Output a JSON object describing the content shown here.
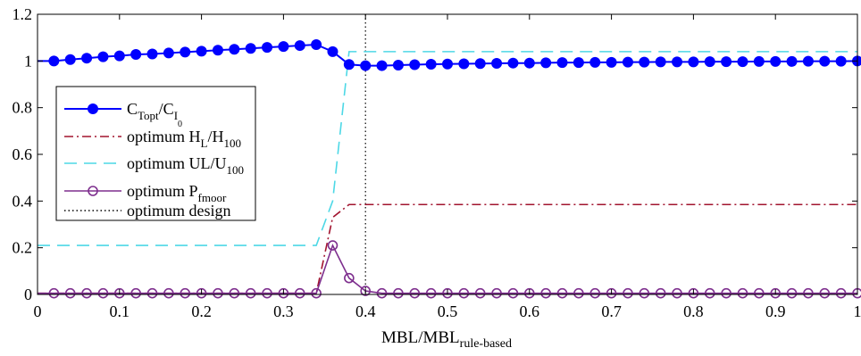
{
  "chart_data": {
    "type": "line",
    "title": "",
    "xlabel": "MBL/MBL",
    "xlabel_sub": "rule-based",
    "ylabel": "",
    "xlim": [
      0,
      1
    ],
    "ylim": [
      0,
      1.2
    ],
    "x_ticks": [
      "0",
      "0.1",
      "0.2",
      "0.3",
      "0.4",
      "0.5",
      "0.6",
      "0.7",
      "0.8",
      "0.9",
      "1"
    ],
    "y_ticks": [
      "0",
      "0.2",
      "0.4",
      "0.6",
      "0.8",
      "1",
      "1.2"
    ],
    "grid": false,
    "legend_position": "left, center",
    "legend": [
      {
        "base": "C",
        "sub": "Topt",
        "mid": "/C",
        "sub2": "I",
        "subsub": "0"
      },
      {
        "base": "optimum H",
        "sub": "L",
        "mid": "/H",
        "sub2": "100"
      },
      {
        "base": "optimum UL/U",
        "sub": "100"
      },
      {
        "base": "optimum P",
        "sub": "fmoor"
      },
      {
        "base": "optimum design"
      }
    ],
    "colors": {
      "ctopt": "#0000ff",
      "hl": "#a2142f",
      "ul": "#4dd8e6",
      "pfmoor": "#7e2f8e",
      "design": "#000000"
    },
    "x": [
      0.02,
      0.04,
      0.06,
      0.08,
      0.1,
      0.12,
      0.14,
      0.16,
      0.18,
      0.2,
      0.22,
      0.24,
      0.26,
      0.28,
      0.3,
      0.32,
      0.34,
      0.36,
      0.38,
      0.4,
      0.42,
      0.44,
      0.46,
      0.48,
      0.5,
      0.52,
      0.54,
      0.56,
      0.58,
      0.6,
      0.62,
      0.64,
      0.66,
      0.68,
      0.7,
      0.72,
      0.74,
      0.76,
      0.78,
      0.8,
      0.82,
      0.84,
      0.86,
      0.88,
      0.9,
      0.92,
      0.94,
      0.96,
      0.98,
      1.0
    ],
    "series": [
      {
        "name": "C_Topt/C_I0",
        "values": [
          1.0,
          1.006,
          1.012,
          1.018,
          1.022,
          1.028,
          1.03,
          1.034,
          1.038,
          1.042,
          1.046,
          1.05,
          1.054,
          1.058,
          1.062,
          1.066,
          1.07,
          1.04,
          0.985,
          0.98,
          0.98,
          0.982,
          0.984,
          0.986,
          0.987,
          0.988,
          0.989,
          0.99,
          0.991,
          0.991,
          0.992,
          0.993,
          0.993,
          0.994,
          0.994,
          0.995,
          0.995,
          0.996,
          0.996,
          0.996,
          0.997,
          0.997,
          0.997,
          0.998,
          0.998,
          0.998,
          0.999,
          0.999,
          0.999,
          1.0
        ]
      },
      {
        "name": "optimum H_L/H_100",
        "values": [
          0.005,
          0.005,
          0.005,
          0.005,
          0.005,
          0.005,
          0.005,
          0.005,
          0.005,
          0.005,
          0.005,
          0.005,
          0.005,
          0.005,
          0.005,
          0.005,
          0.005,
          0.33,
          0.385,
          0.385,
          0.385,
          0.385,
          0.385,
          0.385,
          0.385,
          0.385,
          0.385,
          0.385,
          0.385,
          0.385,
          0.385,
          0.385,
          0.385,
          0.385,
          0.385,
          0.385,
          0.385,
          0.385,
          0.385,
          0.385,
          0.385,
          0.385,
          0.385,
          0.385,
          0.385,
          0.385,
          0.385,
          0.385,
          0.385,
          0.385
        ]
      },
      {
        "name": "optimum UL/U_100",
        "values": [
          0.21,
          0.21,
          0.21,
          0.21,
          0.21,
          0.21,
          0.21,
          0.21,
          0.21,
          0.21,
          0.21,
          0.21,
          0.21,
          0.21,
          0.21,
          0.21,
          0.21,
          0.4,
          1.04,
          1.04,
          1.04,
          1.04,
          1.04,
          1.04,
          1.04,
          1.04,
          1.04,
          1.04,
          1.04,
          1.04,
          1.04,
          1.04,
          1.04,
          1.04,
          1.04,
          1.04,
          1.04,
          1.04,
          1.04,
          1.04,
          1.04,
          1.04,
          1.04,
          1.04,
          1.04,
          1.04,
          1.04,
          1.04,
          1.04,
          1.04
        ]
      },
      {
        "name": "optimum P_fmoor",
        "values": [
          0.005,
          0.005,
          0.005,
          0.005,
          0.005,
          0.005,
          0.005,
          0.005,
          0.005,
          0.005,
          0.005,
          0.005,
          0.005,
          0.005,
          0.005,
          0.005,
          0.005,
          0.21,
          0.07,
          0.015,
          0.005,
          0.005,
          0.005,
          0.005,
          0.005,
          0.005,
          0.005,
          0.005,
          0.005,
          0.005,
          0.005,
          0.005,
          0.005,
          0.005,
          0.005,
          0.005,
          0.005,
          0.005,
          0.005,
          0.005,
          0.005,
          0.005,
          0.005,
          0.005,
          0.005,
          0.005,
          0.005,
          0.005,
          0.005,
          0.005
        ]
      }
    ],
    "optimum_design_x": 0.4
  }
}
